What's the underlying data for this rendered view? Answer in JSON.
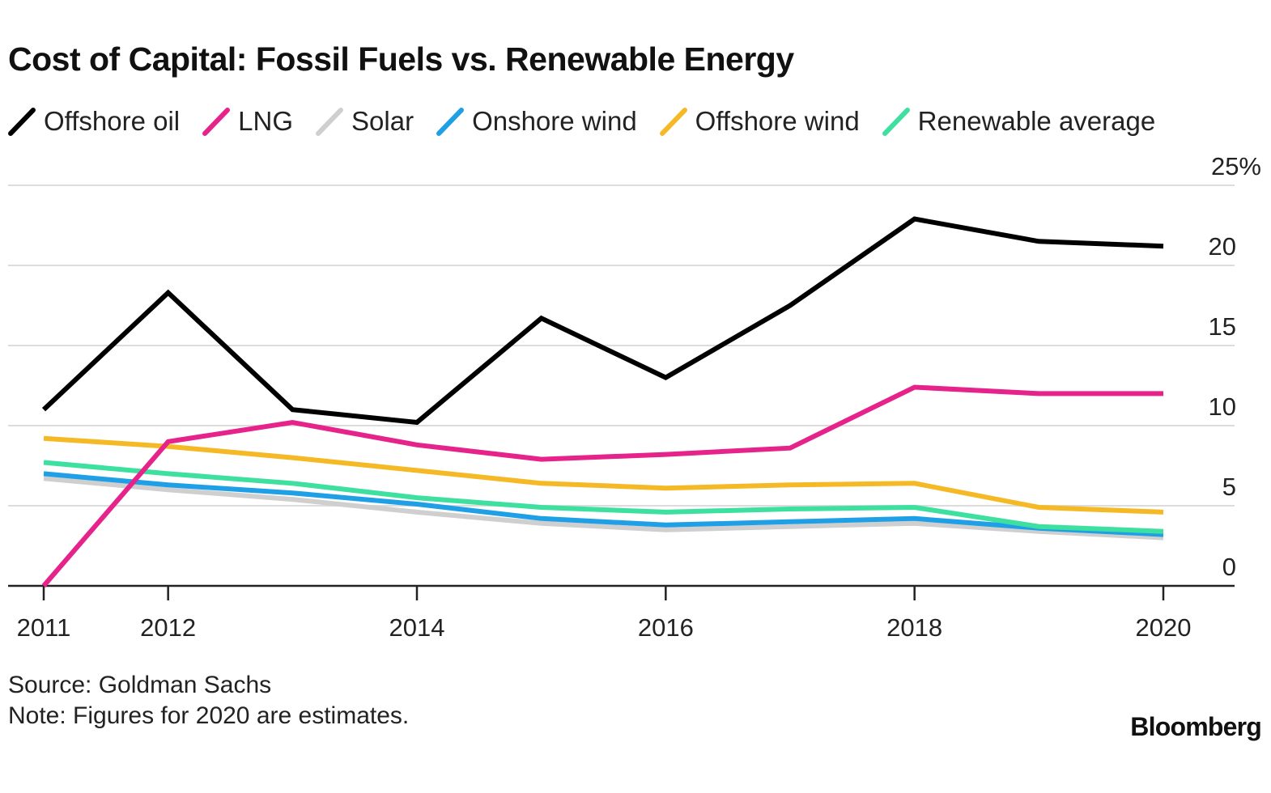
{
  "chart_data": {
    "type": "line",
    "title": "Cost of Capital: Fossil Fuels vs. Renewable Energy",
    "xlabel": "",
    "ylabel": "",
    "x": [
      2011,
      2012,
      2013,
      2014,
      2015,
      2016,
      2017,
      2018,
      2019,
      2020
    ],
    "x_tick_labels": [
      "2011",
      "2012",
      "2014",
      "2016",
      "2018",
      "2020"
    ],
    "x_ticks": [
      2011,
      2012,
      2014,
      2016,
      2018,
      2020
    ],
    "y_tick_labels": [
      "0",
      "5",
      "10",
      "15",
      "20",
      "25%"
    ],
    "y_ticks": [
      0,
      5,
      10,
      15,
      20,
      25
    ],
    "ylim": [
      0,
      25
    ],
    "xlim": [
      2011,
      2020
    ],
    "grid": true,
    "y_axis_side": "right",
    "legend_position": "top",
    "series": [
      {
        "name": "Offshore oil",
        "color": "#000000",
        "values": [
          11,
          18.3,
          11,
          10.2,
          16.7,
          13,
          17.5,
          22.9,
          21.5,
          21.2
        ]
      },
      {
        "name": "LNG",
        "color": "#e6238a",
        "values": [
          0,
          9,
          10.2,
          8.8,
          7.9,
          8.2,
          8.6,
          12.4,
          12,
          12
        ]
      },
      {
        "name": "Solar",
        "color": "#cfcfcf",
        "values": [
          6.7,
          6,
          5.4,
          4.6,
          3.9,
          3.5,
          3.7,
          3.9,
          3.4,
          3
        ]
      },
      {
        "name": "Onshore wind",
        "color": "#1f9fe6",
        "values": [
          7,
          6.3,
          5.8,
          5.1,
          4.2,
          3.8,
          4,
          4.2,
          3.6,
          3.2
        ]
      },
      {
        "name": "Offshore wind",
        "color": "#f5b926",
        "values": [
          9.2,
          8.7,
          8,
          7.2,
          6.4,
          6.1,
          6.3,
          6.4,
          4.9,
          4.6
        ]
      },
      {
        "name": "Renewable average",
        "color": "#3ee0a0",
        "values": [
          7.7,
          7,
          6.4,
          5.5,
          4.9,
          4.6,
          4.8,
          4.9,
          3.7,
          3.4
        ]
      }
    ]
  },
  "footer": {
    "source": "Source: Goldman Sachs",
    "note": "Note: Figures for 2020 are estimates."
  },
  "brand": {
    "logo_text": "Bloomberg"
  }
}
